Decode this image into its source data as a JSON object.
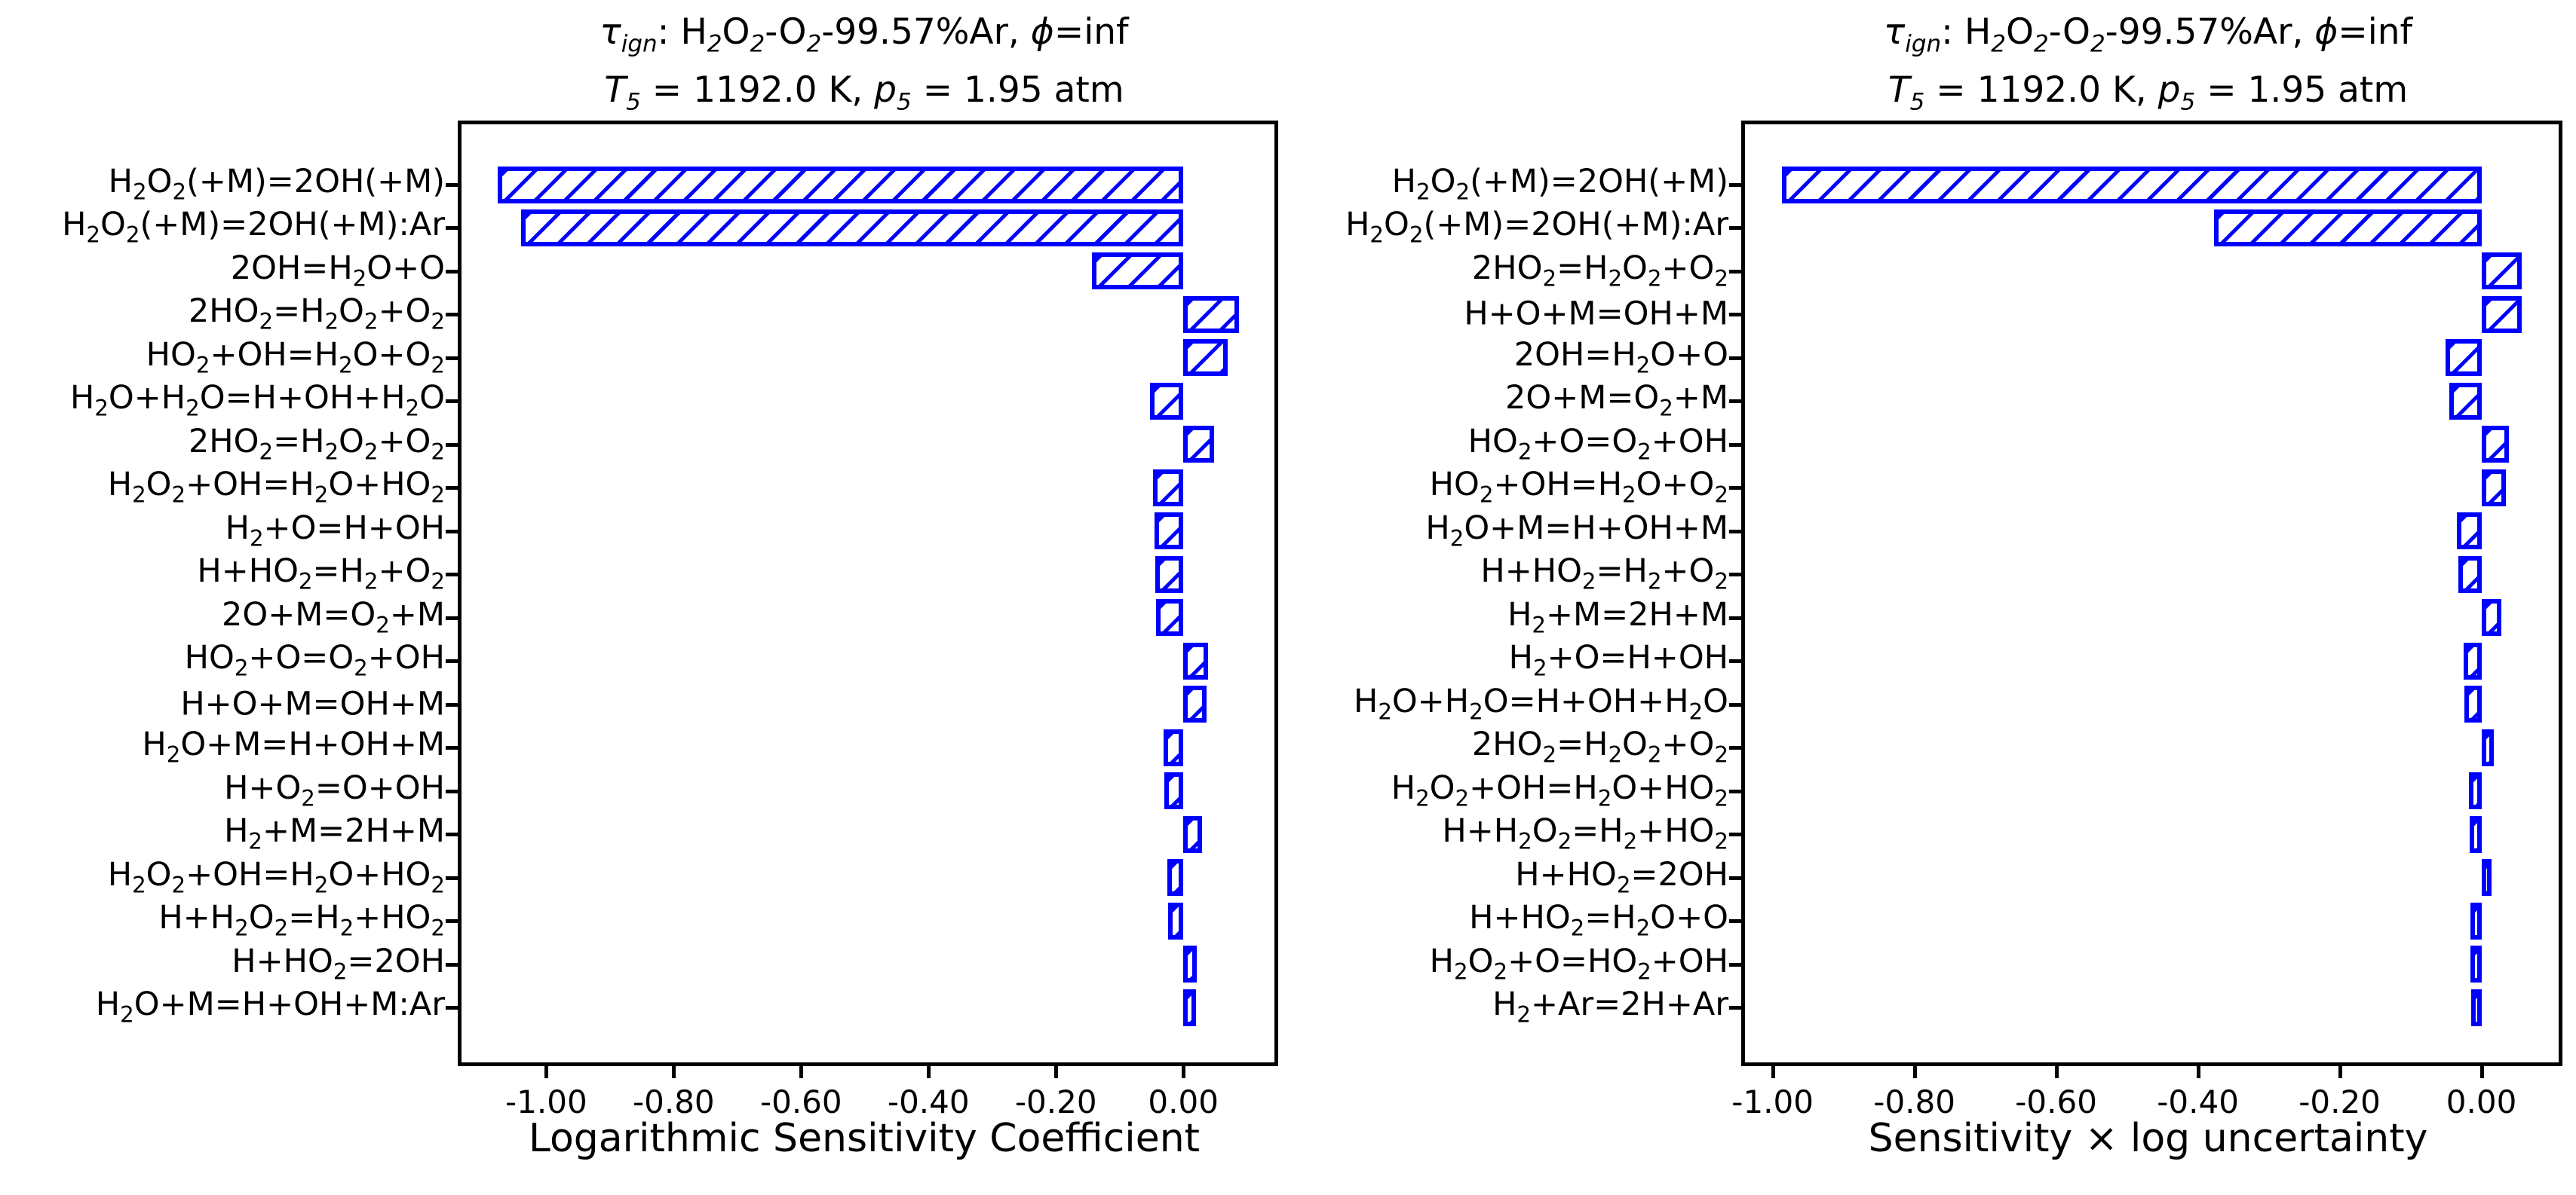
{
  "figure": {
    "background": "#ffffff",
    "bar_face": "#ffffff",
    "bar_edge": "#0000ff",
    "spine_color": "#000000",
    "text_color": "#000000"
  },
  "chart_data": [
    {
      "type": "bar",
      "orientation": "horizontal",
      "hatch": "/",
      "title_line1": "*τ*~ign~: H~2~O~2~-O~2~-99.57%Ar, *ϕ*=inf",
      "title_line2": "*T*~5~ = 1192.0 K, *p*~5~ = 1.95 atm",
      "xlabel": "Logarithmic Sensitivity Coefficient",
      "xlim": [
        -1.133,
        0.143
      ],
      "grid": false,
      "legend": false,
      "xticks": [
        -1.0,
        -0.8,
        -0.6,
        -0.4,
        -0.2,
        0.0
      ],
      "xtick_labels": [
        "-1.00",
        "-0.80",
        "-0.60",
        "-0.40",
        "-0.20",
        "0.00"
      ],
      "categories": [
        "H~2~O~2~(+M)=2OH(+M)",
        "H~2~O~2~(+M)=2OH(+M):Ar",
        "2OH=H~2~O+O",
        "2HO~2~=H~2~O~2~+O~2~",
        "HO~2~+OH=H~2~O+O~2~",
        "H~2~O+H~2~O=H+OH+H~2~O",
        "2HO~2~=H~2~O~2~+O~2~",
        "H~2~O~2~+OH=H~2~O+HO~2~",
        "H~2~+O=H+OH",
        "H+HO~2~=H~2~+O~2~",
        "2O+M=O~2~+M",
        "HO~2~+O=O~2~+OH",
        "H+O+M=OH+M",
        "H~2~O+M=H+OH+M",
        "H+O~2~=O+OH",
        "H~2~+M=2H+M",
        "H~2~O~2~+OH=H~2~O+HO~2~",
        "H+H~2~O~2~=H~2~+HO~2~",
        "H+HO~2~=2OH",
        "H~2~O+M=H+OH+M:Ar"
      ],
      "values": [
        -1.076,
        -1.04,
        -0.144,
        0.087,
        0.07,
        -0.052,
        0.048,
        -0.047,
        -0.045,
        -0.044,
        -0.043,
        0.039,
        0.037,
        -0.031,
        -0.03,
        0.029,
        -0.025,
        -0.024,
        0.021,
        0.02
      ]
    },
    {
      "type": "bar",
      "orientation": "horizontal",
      "hatch": "/",
      "title_line1": "*τ*~ign~: H~2~O~2~-O~2~-99.57%Ar, *ϕ*=inf",
      "title_line2": "*T*~5~ = 1192.0 K, *p*~5~ = 1.95 atm",
      "xlabel": "Sensitivity × log uncertainty",
      "xlim": [
        -1.039,
        0.109
      ],
      "grid": false,
      "legend": false,
      "xticks": [
        -1.0,
        -0.8,
        -0.6,
        -0.4,
        -0.2,
        0.0
      ],
      "xtick_labels": [
        "-1.00",
        "-0.80",
        "-0.60",
        "-0.40",
        "-0.20",
        "0.00"
      ],
      "categories": [
        "H~2~O~2~(+M)=2OH(+M)",
        "H~2~O~2~(+M)=2OH(+M):Ar",
        "2HO~2~=H~2~O~2~+O~2~",
        "H+O+M=OH+M",
        "2OH=H~2~O+O",
        "2O+M=O~2~+M",
        "HO~2~+O=O~2~+OH",
        "HO~2~+OH=H~2~O+O~2~",
        "H~2~O+M=H+OH+M",
        "H+HO~2~=H~2~+O~2~",
        "H~2~+M=2H+M",
        "H~2~+O=H+OH",
        "H~2~O+H~2~O=H+OH+H~2~O",
        "2HO~2~=H~2~O~2~+O~2~",
        "H~2~O~2~+OH=H~2~O+HO~2~",
        "H+H~2~O~2~=H~2~+HO~2~",
        "H+HO~2~=2OH",
        "H+HO~2~=H~2~O+O",
        "H~2~O~2~+O=HO~2~+OH",
        "H~2~+Ar=2H+Ar"
      ],
      "values": [
        -0.987,
        -0.377,
        0.057,
        0.057,
        -0.051,
        -0.045,
        0.039,
        0.035,
        -0.035,
        -0.033,
        0.028,
        -0.025,
        -0.024,
        0.018,
        -0.018,
        -0.017,
        0.014,
        -0.016,
        -0.015,
        -0.014
      ]
    }
  ]
}
